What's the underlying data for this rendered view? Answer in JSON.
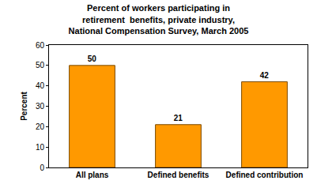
{
  "chart_data": {
    "type": "bar",
    "title": "Percent of workers participating in\nretirement  benefits, private industry,\nNational Compensation Survey, March 2005",
    "y_label": "Percent",
    "categories": [
      "All plans",
      "Defined benefits",
      "Defined contribution"
    ],
    "values": [
      50,
      21,
      42
    ],
    "color": "#ff9900",
    "ylim": [
      0,
      60
    ],
    "yticks": [
      0,
      10,
      20,
      30,
      40,
      50,
      60
    ],
    "grid": false,
    "data_labels": true
  }
}
